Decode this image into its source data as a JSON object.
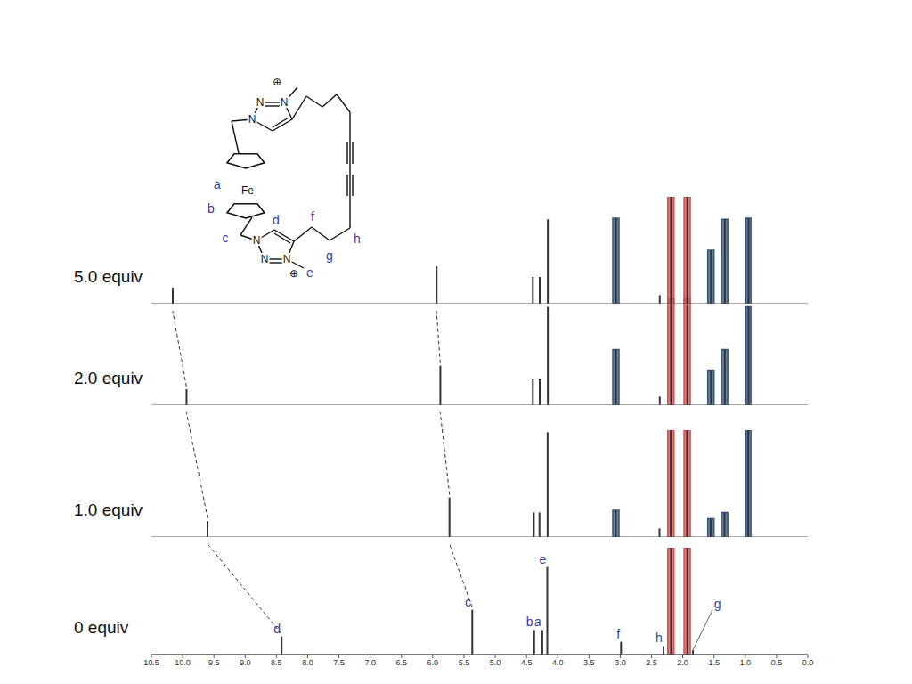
{
  "chart_data": [
    {
      "type": "bar",
      "title": "0 equiv",
      "color": "#333333",
      "x": [
        8.42,
        5.37,
        4.38,
        4.25,
        4.17,
        2.99,
        2.31,
        2.19,
        1.93,
        1.84
      ],
      "values": [
        17,
        42,
        23,
        23,
        82,
        12,
        8,
        100,
        100,
        4
      ],
      "xlim": [
        10.5,
        0
      ],
      "ylim": [
        0,
        100
      ],
      "xticks": [
        10.5,
        {
          "value": 10,
          "label": "10.0"
        },
        9.5,
        {
          "value": 9,
          "label": "9.0"
        },
        8.5,
        {
          "value": 8,
          "label": "8.0"
        },
        7.5,
        {
          "value": 7,
          "label": "7.0"
        },
        6.5,
        {
          "value": 6,
          "label": "6.0"
        },
        5.5,
        {
          "value": 5,
          "label": "5.0"
        },
        4.5,
        {
          "value": 4,
          "label": "4.0"
        },
        3.5,
        {
          "value": 3,
          "label": "3.0"
        },
        2.5,
        {
          "value": 2,
          "label": "2.0"
        },
        1.5,
        {
          "value": 1,
          "label": "1.0"
        },
        0.5,
        {
          "value": 0,
          "label": "0.0"
        }
      ],
      "tick_labels": "x",
      "bands": [
        {
          "x1": 2.24,
          "x2": 2.14,
          "color": "#d94c4c"
        },
        {
          "x1": 1.98,
          "x2": 1.88,
          "color": "#d94c4c"
        }
      ],
      "annotations": [
        {
          "text": "d",
          "x": 8.42
        },
        {
          "text": "c",
          "x": 5.37
        },
        {
          "text": "b",
          "x": 4.38
        },
        {
          "text": "a",
          "x": 4.25
        },
        {
          "text": "e",
          "x": 4.17
        },
        {
          "text": "f",
          "x": 2.99
        },
        {
          "text": "h",
          "x": 2.31
        },
        {
          "text": "g",
          "x": 1.84
        }
      ]
    },
    {
      "type": "bar",
      "title": "1.0 equiv",
      "color": "#333333",
      "x": [
        9.6,
        5.73,
        4.38,
        4.29,
        4.16,
        3.07,
        2.37,
        2.19,
        1.93,
        1.55,
        1.33,
        0.95
      ],
      "values": [
        15,
        37,
        23,
        23,
        98,
        25,
        8,
        100,
        100,
        17,
        23,
        100
      ],
      "xlim": [
        10.5,
        0
      ],
      "ylim": [
        0,
        100
      ],
      "tick_labels": false,
      "bands": [
        {
          "x1": 3.12,
          "x2": 3.02,
          "color": "#35557f"
        },
        {
          "x1": 2.24,
          "x2": 2.14,
          "color": "#d94c4c"
        },
        {
          "x1": 1.98,
          "x2": 1.88,
          "color": "#d94c4c"
        },
        {
          "x1": 1.6,
          "x2": 1.5,
          "color": "#35557f"
        },
        {
          "x1": 1.38,
          "x2": 1.28,
          "color": "#35557f"
        },
        {
          "x1": 0.99,
          "x2": 0.91,
          "color": "#35557f"
        }
      ]
    },
    {
      "type": "bar",
      "title": "2.0 equiv",
      "color": "#333333",
      "x": [
        9.94,
        5.88,
        4.4,
        4.29,
        4.16,
        3.07,
        2.37,
        2.19,
        1.93,
        1.55,
        1.33,
        0.95
      ],
      "values": [
        15,
        37,
        25,
        25,
        92,
        52,
        8,
        100,
        100,
        33,
        52,
        92
      ],
      "xlim": [
        10.5,
        0
      ],
      "ylim": [
        0,
        100
      ],
      "tick_labels": false,
      "bands": [
        {
          "x1": 3.12,
          "x2": 3.02,
          "color": "#35557f"
        },
        {
          "x1": 2.24,
          "x2": 2.14,
          "color": "#d94c4c"
        },
        {
          "x1": 1.98,
          "x2": 1.88,
          "color": "#d94c4c"
        },
        {
          "x1": 1.6,
          "x2": 1.5,
          "color": "#35557f"
        },
        {
          "x1": 1.38,
          "x2": 1.28,
          "color": "#35557f"
        },
        {
          "x1": 0.99,
          "x2": 0.91,
          "color": "#35557f"
        }
      ]
    },
    {
      "type": "bar",
      "title": "5.0 equiv",
      "color": "#333333",
      "x": [
        10.16,
        5.94,
        4.4,
        4.29,
        4.16,
        3.07,
        2.37,
        2.19,
        1.93,
        1.55,
        1.33,
        0.95
      ],
      "values": [
        15,
        35,
        25,
        25,
        79,
        80,
        8,
        100,
        100,
        50,
        79,
        80
      ],
      "xlim": [
        10.5,
        0
      ],
      "ylim": [
        0,
        100
      ],
      "tick_labels": false,
      "bands": [
        {
          "x1": 3.12,
          "x2": 3.02,
          "color": "#35557f"
        },
        {
          "x1": 2.24,
          "x2": 2.14,
          "color": "#d94c4c"
        },
        {
          "x1": 1.98,
          "x2": 1.88,
          "color": "#d94c4c"
        },
        {
          "x1": 1.6,
          "x2": 1.5,
          "color": "#35557f"
        },
        {
          "x1": 1.38,
          "x2": 1.28,
          "color": "#35557f"
        },
        {
          "x1": 0.99,
          "x2": 0.91,
          "color": "#35557f"
        }
      ]
    }
  ],
  "peak_shifts": [
    [
      8.42,
      9.6,
      9.94,
      10.16
    ],
    [
      5.37,
      5.73,
      5.88,
      5.94
    ]
  ],
  "structure": {
    "metal": "Fe",
    "atom": "N",
    "charge": "⊕",
    "labels": [
      "a",
      "b",
      "c",
      "d",
      "e",
      "f",
      "g",
      "h"
    ]
  }
}
